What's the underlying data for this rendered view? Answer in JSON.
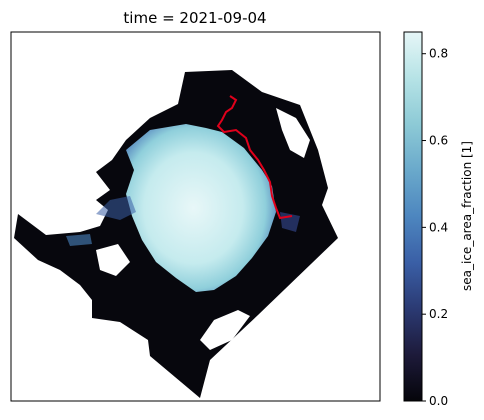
{
  "chart_data": {
    "type": "heatmap",
    "title": "time = 2021-09-04",
    "colorbar": {
      "label": "sea_ice_area_fraction [1]",
      "range": [
        0.0,
        0.85
      ],
      "ticks": [
        0.0,
        0.2,
        0.4,
        0.6,
        0.8
      ],
      "tick_labels": [
        "0.0",
        "0.2",
        "0.4",
        "0.6",
        "0.8"
      ],
      "colormap": [
        "#05050a",
        "#1d1a3a",
        "#2b3a73",
        "#3a5fa6",
        "#4d86bf",
        "#6aa9cb",
        "#8dcad6",
        "#b6e3e6",
        "#e6f6f7"
      ]
    },
    "map": {
      "grid": false,
      "axes_ticks": false,
      "land_color": "#ffffff",
      "open_water_color": "#07070d"
    },
    "overlay": {
      "type": "line",
      "color": "#e0001b",
      "description_visible": false
    }
  }
}
